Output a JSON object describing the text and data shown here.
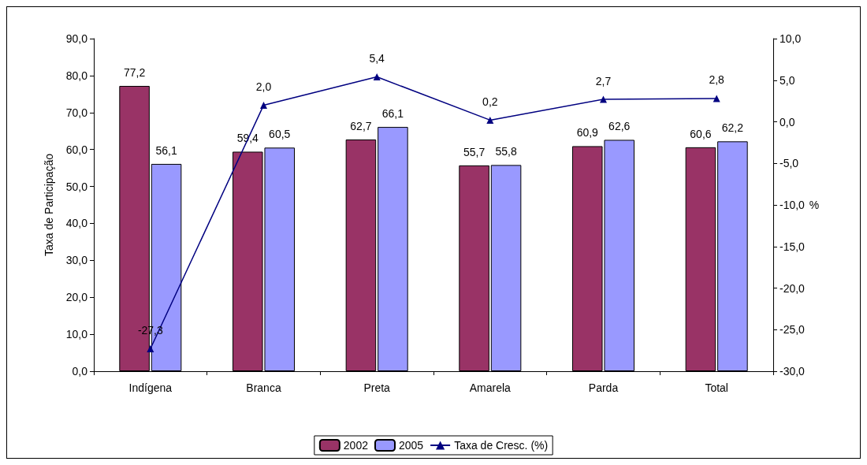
{
  "chart_data": {
    "type": "bar",
    "ylabel": "Taxa de Participação",
    "y2label": "%",
    "categories": [
      "Indígena",
      "Branca",
      "Preta",
      "Amarela",
      "Parda",
      "Total"
    ],
    "series": [
      {
        "name": "2002",
        "color": "#993366",
        "values": [
          77.2,
          59.4,
          62.7,
          55.7,
          60.9,
          60.6
        ],
        "value_labels": [
          "77,2",
          "59,4",
          "62,7",
          "55,7",
          "60,9",
          "60,6"
        ]
      },
      {
        "name": "2005",
        "color": "#9999ff",
        "values": [
          56.1,
          60.5,
          66.1,
          55.8,
          62.6,
          62.2
        ],
        "value_labels": [
          "56,1",
          "60,5",
          "66,1",
          "55,8",
          "62,6",
          "62,2"
        ]
      },
      {
        "name": "Taxa de Cresc. (%)",
        "type": "line",
        "axis": "y2",
        "color": "#000080",
        "marker": "triangle",
        "values": [
          -27.3,
          2.0,
          5.4,
          0.2,
          2.7,
          2.8
        ],
        "value_labels": [
          "-27,3",
          "2,0",
          "5,4",
          "0,2",
          "2,7",
          "2,8"
        ]
      }
    ],
    "ylim": [
      0,
      90
    ],
    "yticks": [
      {
        "value": 0,
        "label": "0,0"
      },
      {
        "value": 10,
        "label": "10,0"
      },
      {
        "value": 20,
        "label": "20,0"
      },
      {
        "value": 30,
        "label": "30,0"
      },
      {
        "value": 40,
        "label": "40,0"
      },
      {
        "value": 50,
        "label": "50,0"
      },
      {
        "value": 60,
        "label": "60,0"
      },
      {
        "value": 70,
        "label": "70,0"
      },
      {
        "value": 80,
        "label": "80,0"
      },
      {
        "value": 90,
        "label": "90,0"
      }
    ],
    "y2lim": [
      -30,
      10
    ],
    "y2ticks": [
      {
        "value": -30,
        "label": "-30,0"
      },
      {
        "value": -25,
        "label": "-25,0"
      },
      {
        "value": -20,
        "label": "-20,0"
      },
      {
        "value": -15,
        "label": "-15,0"
      },
      {
        "value": -10,
        "label": "-10,0"
      },
      {
        "value": -5,
        "label": "-5,0"
      },
      {
        "value": 0,
        "label": "0,0"
      },
      {
        "value": 5,
        "label": "5,0"
      },
      {
        "value": 10,
        "label": "10,0"
      }
    ],
    "grid": false,
    "legend": "bottom"
  }
}
